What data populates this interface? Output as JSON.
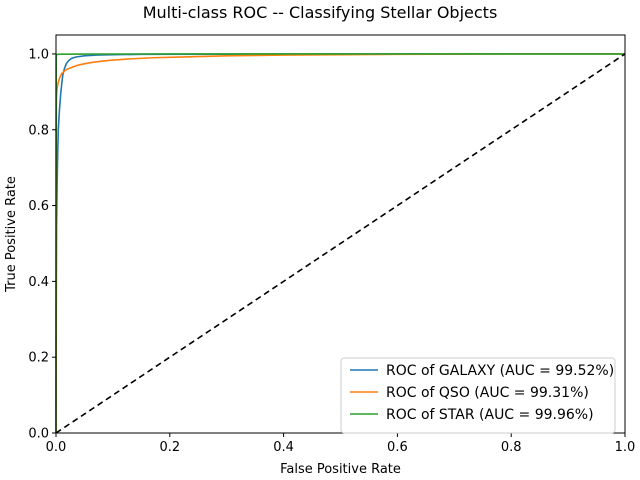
{
  "chart_data": {
    "type": "line",
    "title": "Multi-class ROC -- Classifying Stellar Objects",
    "xlabel": "False Positive Rate",
    "ylabel": "True Positive Rate",
    "xlim": [
      0,
      1
    ],
    "ylim": [
      0,
      1.05
    ],
    "x_ticks": [
      "0.0",
      "0.2",
      "0.4",
      "0.6",
      "0.8",
      "1.0"
    ],
    "y_ticks": [
      "0.0",
      "0.2",
      "0.4",
      "0.6",
      "0.8",
      "1.0"
    ],
    "grid": false,
    "legend_position": "lower-right",
    "series": [
      {
        "name": "ROC of GALAXY (AUC = 99.52%)",
        "color": "#1f77b4",
        "x": [
          0,
          0.0005,
          0.001,
          0.002,
          0.003,
          0.004,
          0.006,
          0.008,
          0.01,
          0.012,
          0.015,
          0.018,
          0.022,
          0.027,
          0.035,
          0.05,
          0.07,
          0.1,
          0.15,
          0.3,
          0.5,
          1.0
        ],
        "y": [
          0,
          0.35,
          0.55,
          0.66,
          0.74,
          0.8,
          0.85,
          0.89,
          0.92,
          0.945,
          0.962,
          0.974,
          0.982,
          0.988,
          0.992,
          0.995,
          0.997,
          0.998,
          0.999,
          0.9995,
          1.0,
          1.0
        ]
      },
      {
        "name": "ROC of QSO (AUC = 99.31%)",
        "color": "#ff7f0e",
        "x": [
          0,
          0.0005,
          0.001,
          0.002,
          0.004,
          0.006,
          0.008,
          0.01,
          0.015,
          0.02,
          0.03,
          0.04,
          0.06,
          0.08,
          0.1,
          0.13,
          0.17,
          0.2,
          0.25,
          0.3,
          0.35,
          0.4,
          0.5,
          0.6,
          0.8,
          1.0
        ],
        "y": [
          0,
          0.86,
          0.89,
          0.91,
          0.925,
          0.935,
          0.942,
          0.948,
          0.955,
          0.96,
          0.966,
          0.971,
          0.977,
          0.981,
          0.984,
          0.987,
          0.99,
          0.991,
          0.993,
          0.995,
          0.996,
          0.997,
          0.998,
          0.999,
          1.0,
          1.0
        ]
      },
      {
        "name": "ROC of STAR (AUC = 99.96%)",
        "color": "#2ca02c",
        "x": [
          0,
          0.0003,
          0.001,
          0.003,
          0.01,
          0.05,
          0.2,
          1.0
        ],
        "y": [
          0,
          0.995,
          0.998,
          0.999,
          0.9995,
          0.9998,
          1.0,
          1.0
        ]
      }
    ],
    "reference_line": {
      "style": "dashed",
      "color": "#000000",
      "x": [
        0,
        1
      ],
      "y": [
        0,
        1
      ]
    }
  }
}
